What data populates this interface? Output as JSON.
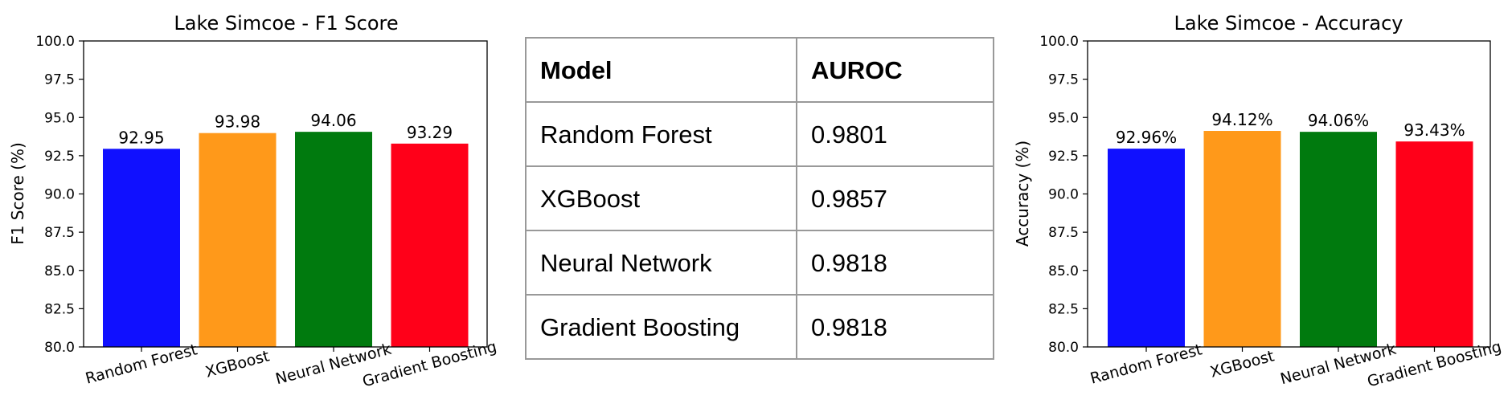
{
  "chart_data": [
    {
      "type": "bar",
      "title": "Lake Simcoe - F1 Score",
      "xlabel": "",
      "ylabel": "F1 Score (%)",
      "categories": [
        "Random Forest",
        "XGBoost",
        "Neural Network",
        "Gradient Boosting"
      ],
      "values": [
        92.95,
        93.98,
        94.06,
        93.29
      ],
      "value_labels": [
        "92.95",
        "93.98",
        "94.06",
        "93.29"
      ],
      "colors": [
        "#1010ff",
        "#ff991a",
        "#007a0e",
        "#ff0019"
      ],
      "ylim": [
        80.0,
        100.0
      ],
      "yticks": [
        "80.0",
        "82.5",
        "85.0",
        "87.5",
        "90.0",
        "92.5",
        "95.0",
        "97.5",
        "100.0"
      ],
      "grid": false
    },
    {
      "type": "table",
      "columns": [
        "Model",
        "AUROC"
      ],
      "rows": [
        [
          "Random Forest",
          "0.9801"
        ],
        [
          "XGBoost",
          "0.9857"
        ],
        [
          "Neural Network",
          "0.9818"
        ],
        [
          "Gradient Boosting",
          "0.9818"
        ]
      ]
    },
    {
      "type": "bar",
      "title": "Lake Simcoe - Accuracy",
      "xlabel": "",
      "ylabel": "Accuracy (%)",
      "categories": [
        "Random Forest",
        "XGBoost",
        "Neural Network",
        "Gradient Boosting"
      ],
      "values": [
        92.96,
        94.12,
        94.06,
        93.43
      ],
      "value_labels": [
        "92.96%",
        "94.12%",
        "94.06%",
        "93.43%"
      ],
      "colors": [
        "#1010ff",
        "#ff991a",
        "#007a0e",
        "#ff0019"
      ],
      "ylim": [
        80.0,
        100.0
      ],
      "yticks": [
        "80.0",
        "82.5",
        "85.0",
        "87.5",
        "90.0",
        "92.5",
        "95.0",
        "97.5",
        "100.0"
      ],
      "grid": false
    }
  ]
}
